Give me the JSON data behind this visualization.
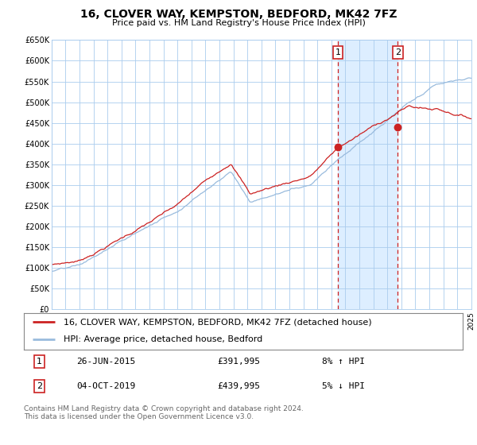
{
  "title": "16, CLOVER WAY, KEMPSTON, BEDFORD, MK42 7FZ",
  "subtitle": "Price paid vs. HM Land Registry's House Price Index (HPI)",
  "ylim": [
    0,
    650000
  ],
  "yticks": [
    0,
    50000,
    100000,
    150000,
    200000,
    250000,
    300000,
    350000,
    400000,
    450000,
    500000,
    550000,
    600000,
    650000
  ],
  "ylabels": [
    "£0",
    "£50K",
    "£100K",
    "£150K",
    "£200K",
    "£250K",
    "£300K",
    "£350K",
    "£400K",
    "£450K",
    "£500K",
    "£550K",
    "£600K",
    "£650K"
  ],
  "p1_year": 2015.46,
  "p1_price": 391995,
  "p2_year": 2019.75,
  "p2_price": 439995,
  "p1_date": "26-JUN-2015",
  "p2_date": "04-OCT-2019",
  "p1_pct": "8% ↑ HPI",
  "p2_pct": "5% ↓ HPI",
  "legend_line1": "16, CLOVER WAY, KEMPSTON, BEDFORD, MK42 7FZ (detached house)",
  "legend_line2": "HPI: Average price, detached house, Bedford",
  "footer": "Contains HM Land Registry data © Crown copyright and database right 2024.\nThis data is licensed under the Open Government Licence v3.0.",
  "bg_color": "#ffffff",
  "plot_bg": "#ffffff",
  "grid_color": "#aaccee",
  "line_red": "#cc2222",
  "line_blue": "#99bbdd",
  "highlight_color": "#ddeeff",
  "dashed_color": "#cc2222",
  "dot_color": "#cc2222",
  "box_edge": "#cc2222",
  "title_fontsize": 10,
  "subtitle_fontsize": 8,
  "tick_fontsize": 7,
  "legend_fontsize": 8,
  "table_fontsize": 8,
  "footer_fontsize": 6.5
}
